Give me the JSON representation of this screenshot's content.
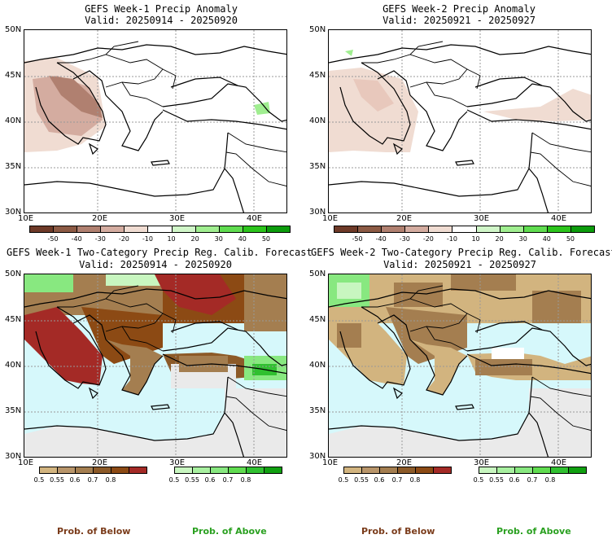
{
  "colors": {
    "sea_prob": "#d6f8fb",
    "land_prob_default": "#eaeaea",
    "brown_light": "#d2b47f",
    "brown_mid": "#a47e50",
    "brown_dark": "#7a5a34",
    "brown_vdark": "#8c4a14",
    "red_dark": "#a42a26",
    "green_light": "#c8f6c0",
    "green_mid": "#88e880",
    "green_dark": "#30c030",
    "below_label": "#7a3b1a",
    "above_label": "#2aa020"
  },
  "panels": [
    {
      "id": "tl",
      "title_line1": "GEFS Week-1 Precip Anomaly",
      "title_line2": "Valid: 20250914 - 20250920",
      "type": "anomaly"
    },
    {
      "id": "tr",
      "title_line1": "GEFS Week-2 Precip Anomaly",
      "title_line2": "Valid: 20250921 - 20250927",
      "type": "anomaly"
    },
    {
      "id": "bl",
      "title_line1": "GEFS Week-1 Two-Category Precip Reg. Calib. Forecast",
      "title_line2": "Valid: 20250914 - 20250920",
      "type": "prob"
    },
    {
      "id": "br",
      "title_line1": "GEFS Week-2 Two-Category Precip Reg. Calib. Forecast",
      "title_line2": "Valid: 20250921 - 20250927",
      "type": "prob"
    }
  ],
  "axes": {
    "lat_labels": [
      "50N",
      "45N",
      "40N",
      "35N",
      "30N"
    ],
    "lon_labels": [
      "10E",
      "20E",
      "30E",
      "40E"
    ]
  },
  "anomaly_colorbar": {
    "labels": [
      "-50",
      "-40",
      "-30",
      "-20",
      "-10",
      "10",
      "20",
      "30",
      "40",
      "50"
    ],
    "colors": [
      "#6e3a28",
      "#8c5a44",
      "#b08070",
      "#d4aca0",
      "#f0dcd2",
      "#ffffff",
      "#d0f6c8",
      "#a0ee90",
      "#60dc50",
      "#2cc41c",
      "#0c9c0c"
    ]
  },
  "below_colorbar": {
    "labels": [
      "0.5",
      "0.55",
      "0.6",
      "0.7",
      "0.8"
    ],
    "colors": [
      "#d2b47f",
      "#b8956a",
      "#a47e50",
      "#8c5a28",
      "#8c4a14",
      "#a42a26"
    ]
  },
  "above_colorbar": {
    "labels": [
      "0.5",
      "0.55",
      "0.6",
      "0.7",
      "0.8"
    ],
    "colors": [
      "#c8f6c0",
      "#a8f0a0",
      "#88e880",
      "#60dc50",
      "#30c030",
      "#10a010"
    ]
  },
  "legend": {
    "below": "Prob. of Below",
    "above": "Prob. of Above"
  }
}
